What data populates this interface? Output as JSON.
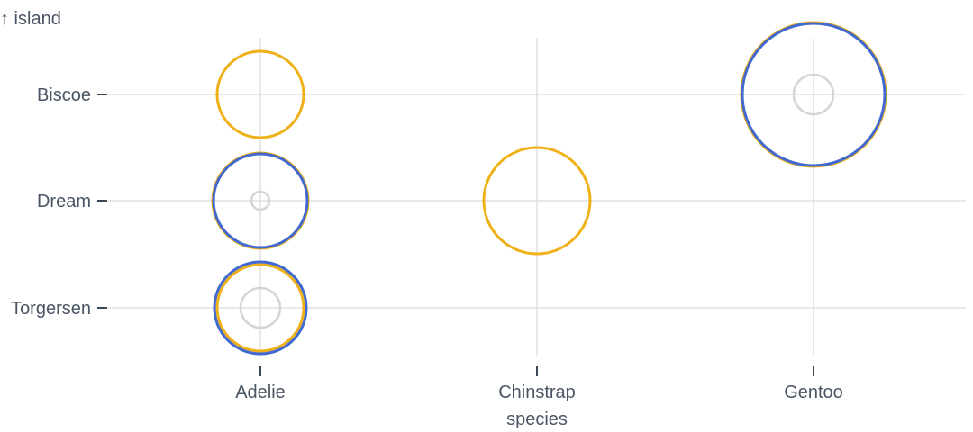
{
  "chart_data": {
    "type": "scatter",
    "title": "",
    "xlabel": "species",
    "ylabel": "↑ island",
    "x_categories": [
      "Adelie",
      "Chinstrap",
      "Gentoo"
    ],
    "y_categories": [
      "Biscoe",
      "Dream",
      "Torgersen"
    ],
    "grid": true,
    "encoding": "concentric rings sized by count; ring color groups",
    "series": [
      {
        "color": "#efb118",
        "points": [
          {
            "x": "Adelie",
            "y": "Biscoe",
            "r": 48
          },
          {
            "x": "Adelie",
            "y": "Dream",
            "r": 53
          },
          {
            "x": "Adelie",
            "y": "Torgersen",
            "r": 48
          },
          {
            "x": "Chinstrap",
            "y": "Dream",
            "r": 59
          },
          {
            "x": "Gentoo",
            "y": "Biscoe",
            "r": 80
          }
        ]
      },
      {
        "color": "#4269d0",
        "points": [
          {
            "x": "Adelie",
            "y": "Dream",
            "r": 52
          },
          {
            "x": "Adelie",
            "y": "Torgersen",
            "r": 51
          },
          {
            "x": "Gentoo",
            "y": "Biscoe",
            "r": 79
          }
        ]
      },
      {
        "color": "#d5d5d5",
        "points": [
          {
            "x": "Adelie",
            "y": "Dream",
            "r": 10
          },
          {
            "x": "Adelie",
            "y": "Torgersen",
            "r": 22
          },
          {
            "x": "Gentoo",
            "y": "Biscoe",
            "r": 22
          }
        ]
      }
    ]
  }
}
